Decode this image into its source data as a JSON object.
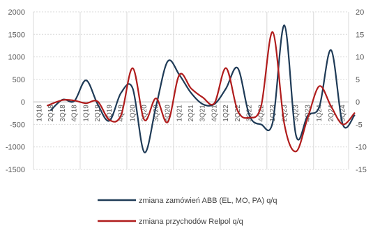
{
  "chart_data": {
    "type": "line",
    "title": "",
    "xlabel": "",
    "ylabel": "",
    "y2label": "",
    "smooth": true,
    "grid": true,
    "legend_position": "bottom",
    "categories": [
      "1Q18",
      "2Q18",
      "3Q18",
      "4Q18",
      "1Q19",
      "2Q19",
      "3Q19",
      "4Q19",
      "1Q20",
      "2Q20",
      "3Q20",
      "4Q20",
      "1Q21",
      "2Q21",
      "3Q21",
      "4Q21",
      "1Q22",
      "2Q22",
      "3Q22",
      "4Q22",
      "1Q23",
      "2Q23",
      "3Q23",
      "4Q23",
      "1Q24",
      "2Q24",
      "3Q24"
    ],
    "ylim": [
      -1500,
      2000
    ],
    "yticks": [
      -1500,
      -1000,
      -500,
      0,
      500,
      1000,
      1500,
      2000
    ],
    "y2lim": [
      -15,
      20
    ],
    "y2ticks": [
      -15,
      -10,
      -5,
      0,
      5,
      10,
      15,
      20
    ],
    "series": [
      {
        "name": "zmiana zamówień ABB (EL, MO, PA) q/q",
        "axis": "left",
        "color": "#1f3b57",
        "x": [
          1.5,
          2.5,
          3.5,
          4.5,
          5.5,
          6.5,
          7.5,
          8.5,
          9.5,
          10.5,
          11.5,
          12.5,
          13.5,
          14.5,
          15.5,
          16.5,
          17.5,
          18.5,
          19.5,
          20.5,
          21.5,
          22.5,
          23.5,
          24.5,
          25.5,
          26.5,
          27.5
        ],
        "values": [
          -180,
          50,
          20,
          480,
          -50,
          -420,
          200,
          300,
          -1120,
          -100,
          900,
          600,
          200,
          -50,
          -50,
          300,
          750,
          -300,
          -500,
          -450,
          1700,
          -750,
          -300,
          -100,
          1150,
          -500,
          -300
        ]
      },
      {
        "name": "zmiana przychodów Relpol q/q",
        "axis": "right",
        "color": "#b01c1c",
        "x": [
          1.2,
          2.5,
          3.5,
          4.5,
          5.5,
          6.5,
          7.5,
          8.5,
          9.5,
          10.5,
          11.5,
          12.5,
          13.5,
          14.5,
          15.5,
          16.5,
          17.5,
          18.5,
          19.5,
          20.5,
          21.5,
          22.5,
          23.5,
          24.5,
          25.5,
          26.5,
          27.5
        ],
        "values": [
          -0.8,
          0.4,
          0.3,
          -0.3,
          0.1,
          -4,
          -3,
          7.5,
          -4,
          0.8,
          -4.5,
          6,
          3,
          1,
          -0.3,
          7.5,
          -2,
          -3.5,
          -1,
          15.5,
          -5,
          -11,
          -3.5,
          3.5,
          -1,
          -5,
          -2.5
        ]
      }
    ]
  }
}
